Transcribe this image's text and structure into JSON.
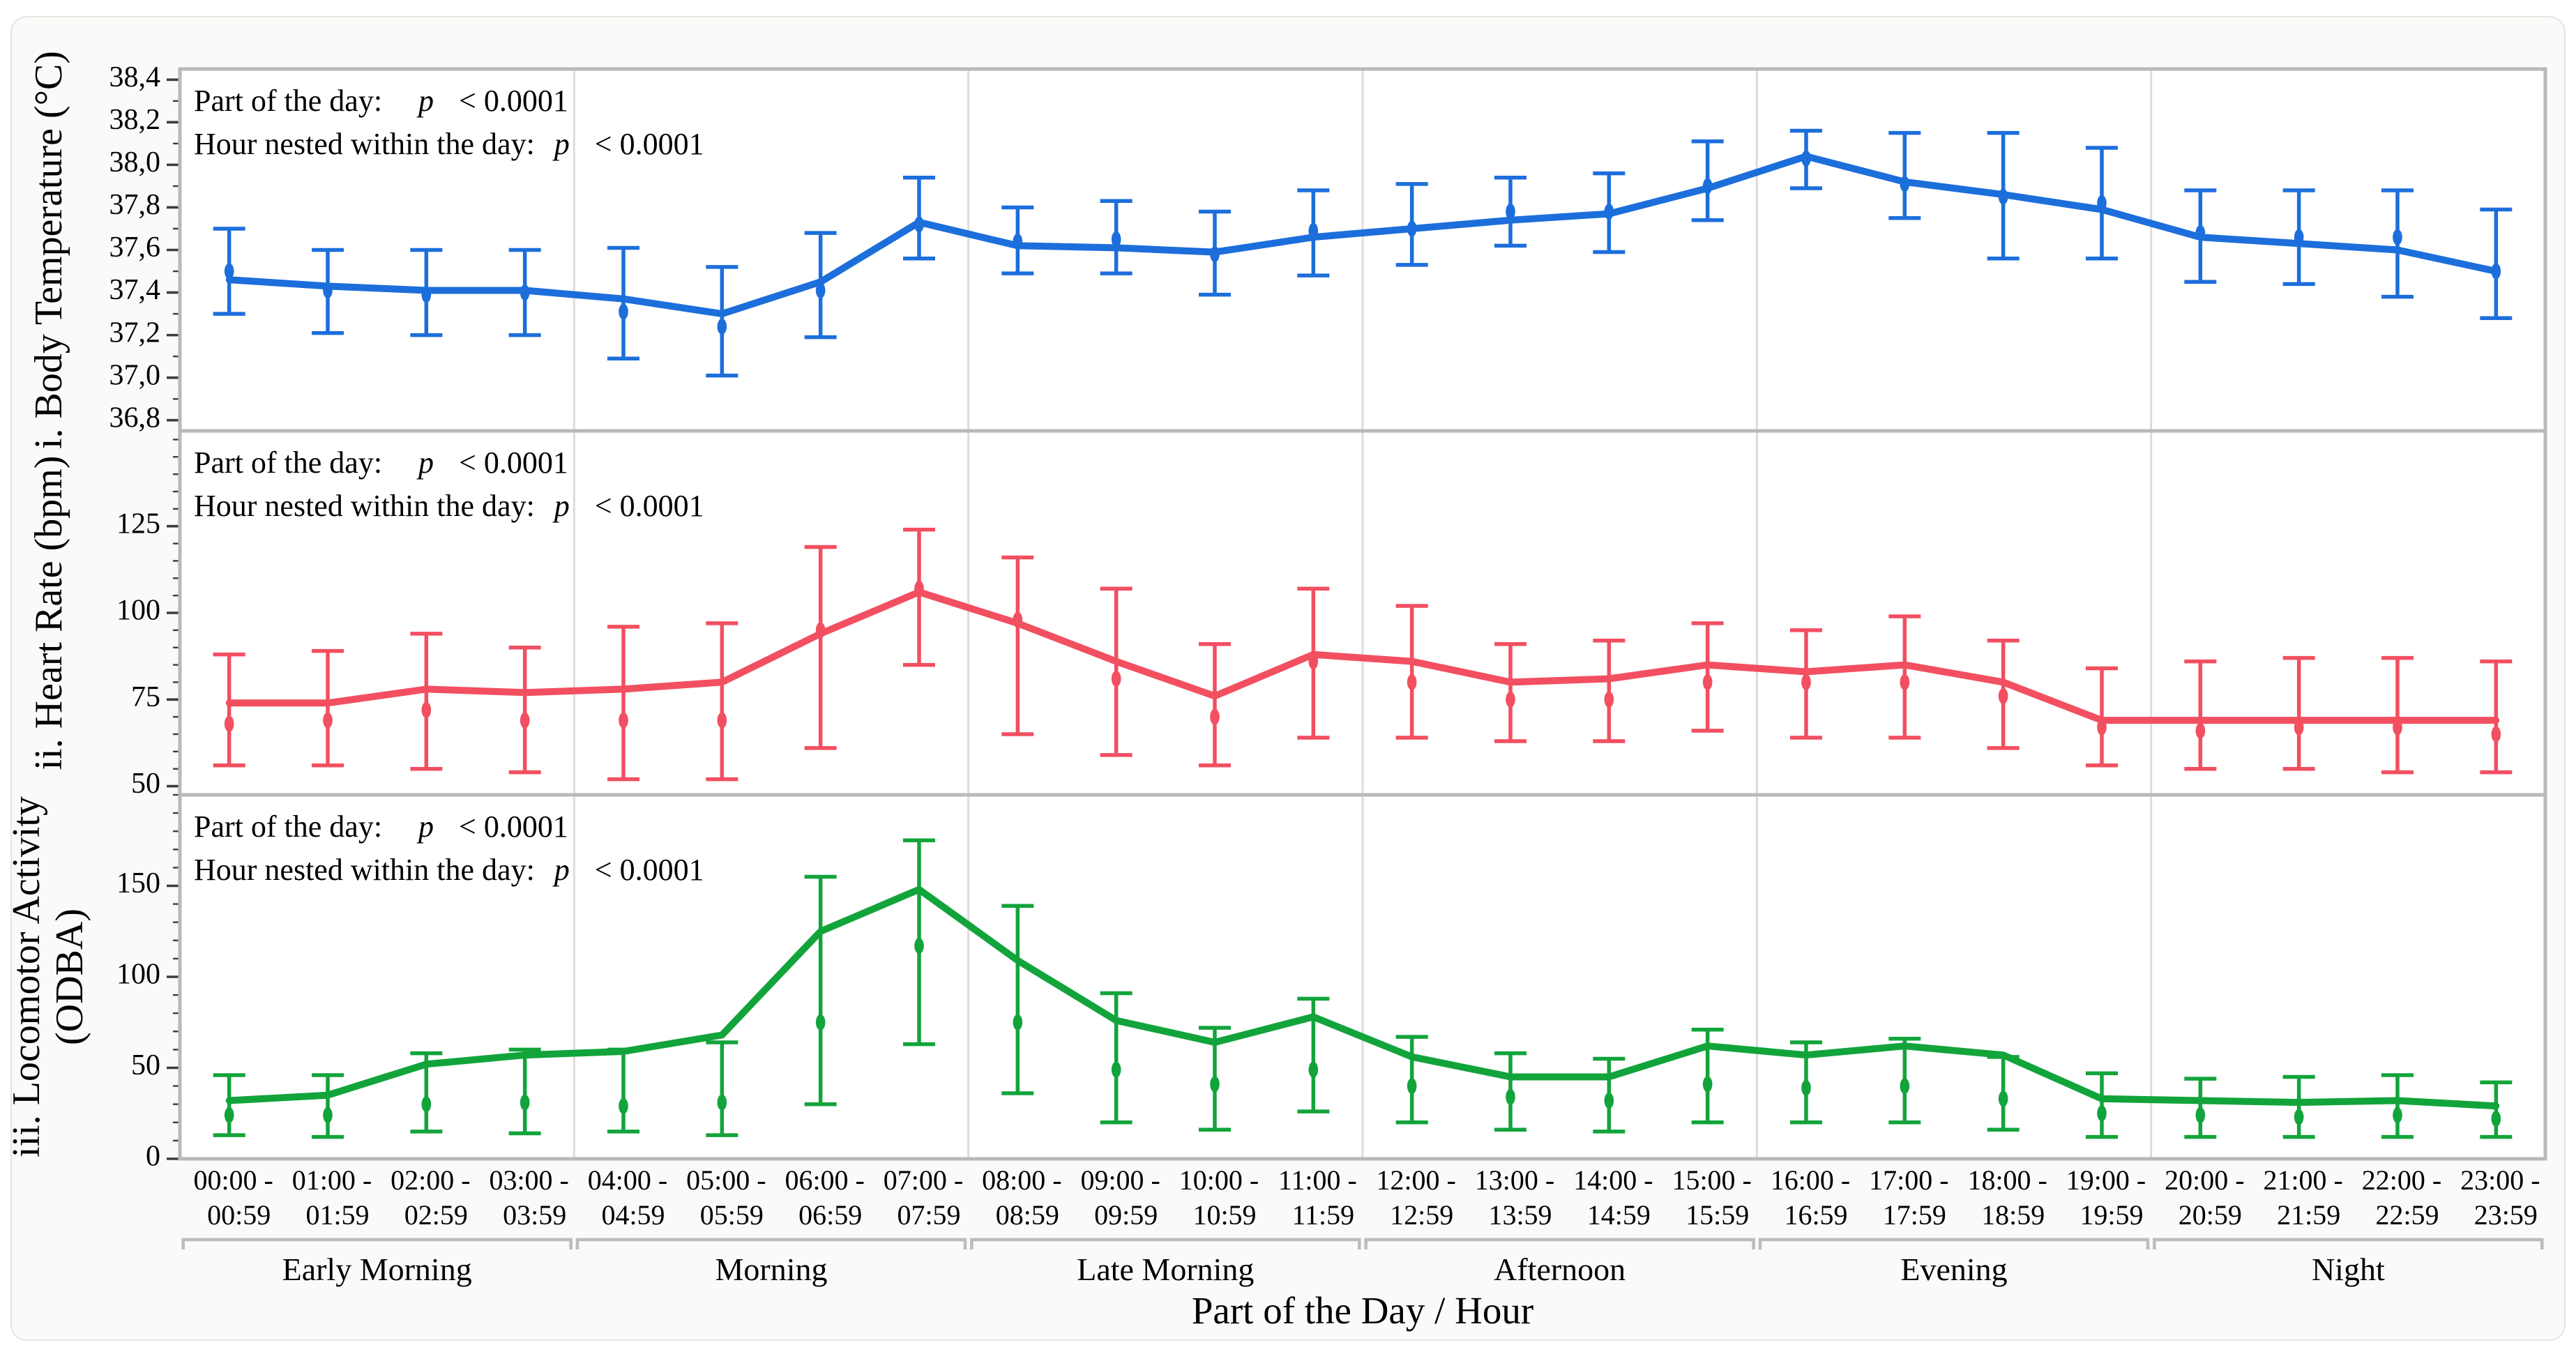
{
  "figure": {
    "x_axis_title": "Part of the Day /  Hour",
    "background": "#FAFAF8",
    "outer_border_color": "#E4E4E1",
    "panel_background": "#FFFFFF",
    "panel_frame_color": "#B9B9B9",
    "group_divider_color": "#DCDCDA",
    "bracket_color": "#BCBCBA",
    "tick_color": "#3C3C3C",
    "text_color": "#000000"
  },
  "annotations": {
    "line1_prefix": "Part of the day:",
    "line2_prefix": "Hour nested within the day:",
    "p_symbol": "p",
    "p_value": "< 0.0001"
  },
  "x_axis": {
    "hour_labels": [
      {
        "top": "00:00 -",
        "bottom": "00:59"
      },
      {
        "top": "01:00 -",
        "bottom": "01:59"
      },
      {
        "top": "02:00 -",
        "bottom": "02:59"
      },
      {
        "top": "03:00 -",
        "bottom": "03:59"
      },
      {
        "top": "04:00 -",
        "bottom": "04:59"
      },
      {
        "top": "05:00 -",
        "bottom": "05:59"
      },
      {
        "top": "06:00 -",
        "bottom": "06:59"
      },
      {
        "top": "07:00 -",
        "bottom": "07:59"
      },
      {
        "top": "08:00 -",
        "bottom": "08:59"
      },
      {
        "top": "09:00 -",
        "bottom": "09:59"
      },
      {
        "top": "10:00 -",
        "bottom": "10:59"
      },
      {
        "top": "11:00 -",
        "bottom": "11:59"
      },
      {
        "top": "12:00 -",
        "bottom": "12:59"
      },
      {
        "top": "13:00 -",
        "bottom": "13:59"
      },
      {
        "top": "14:00 -",
        "bottom": "14:59"
      },
      {
        "top": "15:00 -",
        "bottom": "15:59"
      },
      {
        "top": "16:00 -",
        "bottom": "16:59"
      },
      {
        "top": "17:00 -",
        "bottom": "17:59"
      },
      {
        "top": "18:00 -",
        "bottom": "18:59"
      },
      {
        "top": "19:00 -",
        "bottom": "19:59"
      },
      {
        "top": "20:00 -",
        "bottom": "20:59"
      },
      {
        "top": "21:00 -",
        "bottom": "21:59"
      },
      {
        "top": "22:00 -",
        "bottom": "22:59"
      },
      {
        "top": "23:00 -",
        "bottom": "23:59"
      }
    ],
    "groups": [
      {
        "label": "Early Morning",
        "start": 0,
        "end": 3
      },
      {
        "label": "Morning",
        "start": 4,
        "end": 7
      },
      {
        "label": "Late Morning",
        "start": 8,
        "end": 11
      },
      {
        "label": "Afternoon",
        "start": 12,
        "end": 15
      },
      {
        "label": "Evening",
        "start": 16,
        "end": 19
      },
      {
        "label": "Night",
        "start": 20,
        "end": 23
      }
    ]
  },
  "chart_data": [
    {
      "type": "line",
      "id": "body-temperature",
      "ylabel_lines": [
        "i. Body Temperature (°C)"
      ],
      "color": "#1C6EDB",
      "ylim": [
        36.75,
        38.45
      ],
      "minor_step": 0.1,
      "yticks": [
        {
          "v": 36.8,
          "label": "36,8"
        },
        {
          "v": 37.0,
          "label": "37,0"
        },
        {
          "v": 37.2,
          "label": "37,2"
        },
        {
          "v": 37.4,
          "label": "37,4"
        },
        {
          "v": 37.6,
          "label": "37,6"
        },
        {
          "v": 37.8,
          "label": "37,8"
        },
        {
          "v": 38.0,
          "label": "38,0"
        },
        {
          "v": 38.2,
          "label": "38,2"
        },
        {
          "v": 38.4,
          "label": "38,4"
        }
      ],
      "categories": [
        "00:00 - 00:59",
        "01:00 - 01:59",
        "02:00 - 02:59",
        "03:00 - 03:59",
        "04:00 - 04:59",
        "05:00 - 05:59",
        "06:00 - 06:59",
        "07:00 - 07:59",
        "08:00 - 08:59",
        "09:00 - 09:59",
        "10:00 - 10:59",
        "11:00 - 11:59",
        "12:00 - 12:59",
        "13:00 - 13:59",
        "14:00 - 14:59",
        "15:00 - 15:59",
        "16:00 - 16:59",
        "17:00 - 17:59",
        "18:00 - 18:59",
        "19:00 - 19:59",
        "20:00 - 20:59",
        "21:00 - 21:59",
        "22:00 - 22:59",
        "23:00 - 23:59"
      ],
      "mean": [
        37.5,
        37.41,
        37.39,
        37.4,
        37.31,
        37.24,
        37.41,
        37.72,
        37.64,
        37.65,
        37.58,
        37.69,
        37.7,
        37.78,
        37.78,
        37.9,
        38.03,
        37.91,
        37.85,
        37.82,
        37.68,
        37.66,
        37.66,
        37.5
      ],
      "lo": [
        37.3,
        37.21,
        37.2,
        37.2,
        37.09,
        37.01,
        37.19,
        37.56,
        37.49,
        37.49,
        37.39,
        37.48,
        37.53,
        37.62,
        37.59,
        37.74,
        37.89,
        37.75,
        37.56,
        37.56,
        37.45,
        37.44,
        37.38,
        37.28
      ],
      "hi": [
        37.7,
        37.6,
        37.6,
        37.6,
        37.61,
        37.52,
        37.68,
        37.94,
        37.8,
        37.83,
        37.78,
        37.88,
        37.91,
        37.94,
        37.96,
        38.11,
        38.16,
        38.15,
        38.15,
        38.08,
        37.88,
        37.88,
        37.88,
        37.79
      ],
      "line": [
        37.46,
        37.43,
        37.41,
        37.41,
        37.37,
        37.3,
        37.45,
        37.73,
        37.62,
        37.61,
        37.59,
        37.66,
        37.7,
        37.74,
        37.77,
        37.89,
        38.04,
        37.92,
        37.86,
        37.79,
        37.66,
        37.63,
        37.6,
        37.5
      ],
      "stats": {
        "part_of_day_p": "< 0.0001",
        "hour_nested_p": "< 0.0001"
      }
    },
    {
      "type": "line",
      "id": "heart-rate",
      "ylabel_lines": [
        "ii. Heart Rate (bpm)"
      ],
      "color": "#F24F60",
      "ylim": [
        47.5,
        152.5
      ],
      "minor_step": 5,
      "yticks": [
        {
          "v": 50,
          "label": "50"
        },
        {
          "v": 75,
          "label": "75"
        },
        {
          "v": 100,
          "label": "100"
        },
        {
          "v": 125,
          "label": "125"
        }
      ],
      "categories": [
        "00:00 - 00:59",
        "01:00 - 01:59",
        "02:00 - 02:59",
        "03:00 - 03:59",
        "04:00 - 04:59",
        "05:00 - 05:59",
        "06:00 - 06:59",
        "07:00 - 07:59",
        "08:00 - 08:59",
        "09:00 - 09:59",
        "10:00 - 10:59",
        "11:00 - 11:59",
        "12:00 - 12:59",
        "13:00 - 13:59",
        "14:00 - 14:59",
        "15:00 - 15:59",
        "16:00 - 16:59",
        "17:00 - 17:59",
        "18:00 - 18:59",
        "19:00 - 19:59",
        "20:00 - 20:59",
        "21:00 - 21:59",
        "22:00 - 22:59",
        "23:00 - 23:59"
      ],
      "mean": [
        68,
        69,
        72,
        69,
        69,
        69,
        95,
        107,
        98,
        81,
        70,
        86,
        80,
        75,
        75,
        80,
        80,
        80,
        76,
        67,
        66,
        67,
        67,
        65
      ],
      "lo": [
        56,
        56,
        55,
        54,
        52,
        52,
        61,
        85,
        65,
        59,
        56,
        64,
        64,
        63,
        63,
        66,
        64,
        64,
        61,
        56,
        55,
        55,
        54,
        54
      ],
      "hi": [
        88,
        89,
        94,
        90,
        96,
        97,
        119,
        124,
        116,
        107,
        91,
        107,
        102,
        91,
        92,
        97,
        95,
        99,
        92,
        84,
        86,
        87,
        87,
        86
      ],
      "line": [
        74,
        74,
        78,
        77,
        78,
        80,
        94,
        106,
        97,
        86,
        76,
        88,
        86,
        80,
        81,
        85,
        83,
        85,
        80,
        69,
        69,
        69,
        69,
        69
      ],
      "stats": {
        "part_of_day_p": "< 0.0001",
        "hour_nested_p": "< 0.0001"
      }
    },
    {
      "type": "line",
      "id": "locomotor-activity",
      "ylabel_lines": [
        "iii. Locomotor Activity",
        "(ODBA)"
      ],
      "color": "#12A43B",
      "ylim": [
        0,
        200
      ],
      "minor_step": 10,
      "yticks": [
        {
          "v": 0,
          "label": "0"
        },
        {
          "v": 50,
          "label": "50"
        },
        {
          "v": 100,
          "label": "100"
        },
        {
          "v": 150,
          "label": "150"
        }
      ],
      "categories": [
        "00:00 - 00:59",
        "01:00 - 01:59",
        "02:00 - 02:59",
        "03:00 - 03:59",
        "04:00 - 04:59",
        "05:00 - 05:59",
        "06:00 - 06:59",
        "07:00 - 07:59",
        "08:00 - 08:59",
        "09:00 - 09:59",
        "10:00 - 10:59",
        "11:00 - 11:59",
        "12:00 - 12:59",
        "13:00 - 13:59",
        "14:00 - 14:59",
        "15:00 - 15:59",
        "16:00 - 16:59",
        "17:00 - 17:59",
        "18:00 - 18:59",
        "19:00 - 19:59",
        "20:00 - 20:59",
        "21:00 - 21:59",
        "22:00 - 22:59",
        "23:00 - 23:59"
      ],
      "mean": [
        24,
        24,
        30,
        31,
        29,
        31,
        75,
        117,
        75,
        49,
        41,
        49,
        40,
        34,
        32,
        41,
        39,
        40,
        33,
        25,
        24,
        23,
        24,
        22
      ],
      "lo": [
        13,
        12,
        15,
        14,
        15,
        13,
        30,
        63,
        36,
        20,
        16,
        26,
        20,
        16,
        15,
        20,
        20,
        20,
        16,
        12,
        12,
        12,
        12,
        12
      ],
      "hi": [
        46,
        46,
        58,
        60,
        60,
        64,
        155,
        175,
        139,
        91,
        72,
        88,
        67,
        58,
        55,
        71,
        64,
        66,
        56,
        47,
        44,
        45,
        46,
        42
      ],
      "line": [
        32,
        35,
        52,
        57,
        59,
        68,
        125,
        148,
        109,
        76,
        64,
        78,
        56,
        45,
        45,
        62,
        57,
        62,
        57,
        33,
        32,
        31,
        32,
        29
      ],
      "stats": {
        "part_of_day_p": "< 0.0001",
        "hour_nested_p": "< 0.0001"
      }
    }
  ],
  "layout_hints": {
    "grid": "none",
    "legend": "none",
    "panels_stacked": 3,
    "marker": "vertical-ellipse",
    "error_bars": true
  }
}
